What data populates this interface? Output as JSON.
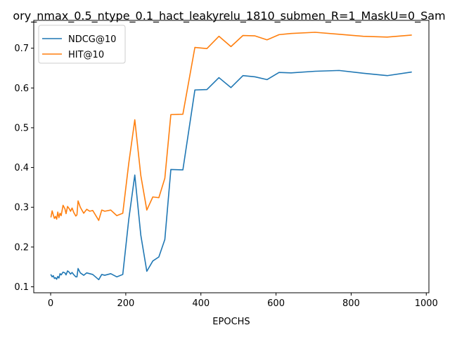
{
  "chart_data": {
    "type": "line",
    "title": "ory_nmax_0.5_ntype_0.1_hact_leakyrelu_1810_submen_R=1_MaskU=0_Sam",
    "xlabel": "EPOCHS",
    "ylabel": "",
    "xlim": [
      -45,
      1007
    ],
    "ylim": [
      0.085,
      0.77
    ],
    "xticks": [
      0,
      200,
      400,
      600,
      800,
      1000
    ],
    "yticks": [
      0.1,
      0.2,
      0.3,
      0.4,
      0.5,
      0.6,
      0.7
    ],
    "grid": false,
    "legend_position": "upper-left",
    "series": [
      {
        "name": "NDCG@10",
        "color": "#1f77b4",
        "points": [
          [
            1,
            0.13
          ],
          [
            4,
            0.125
          ],
          [
            7,
            0.128
          ],
          [
            10,
            0.121
          ],
          [
            13,
            0.123
          ],
          [
            16,
            0.119
          ],
          [
            19,
            0.126
          ],
          [
            22,
            0.122
          ],
          [
            25,
            0.133
          ],
          [
            28,
            0.13
          ],
          [
            33,
            0.137
          ],
          [
            38,
            0.135
          ],
          [
            41,
            0.13
          ],
          [
            45,
            0.14
          ],
          [
            49,
            0.137
          ],
          [
            53,
            0.132
          ],
          [
            57,
            0.136
          ],
          [
            62,
            0.13
          ],
          [
            67,
            0.125
          ],
          [
            70,
            0.125
          ],
          [
            73,
            0.146
          ],
          [
            79,
            0.135
          ],
          [
            88,
            0.129
          ],
          [
            96,
            0.135
          ],
          [
            104,
            0.133
          ],
          [
            112,
            0.131
          ],
          [
            128,
            0.118
          ],
          [
            136,
            0.131
          ],
          [
            144,
            0.129
          ],
          [
            160,
            0.133
          ],
          [
            176,
            0.125
          ],
          [
            192,
            0.131
          ],
          [
            208,
            0.27
          ],
          [
            224,
            0.381
          ],
          [
            240,
            0.23
          ],
          [
            256,
            0.139
          ],
          [
            272,
            0.165
          ],
          [
            288,
            0.175
          ],
          [
            304,
            0.219
          ],
          [
            320,
            0.395
          ],
          [
            352,
            0.394
          ],
          [
            384,
            0.595
          ],
          [
            416,
            0.596
          ],
          [
            448,
            0.626
          ],
          [
            480,
            0.601
          ],
          [
            512,
            0.631
          ],
          [
            544,
            0.628
          ],
          [
            576,
            0.621
          ],
          [
            608,
            0.639
          ],
          [
            640,
            0.638
          ],
          [
            704,
            0.642
          ],
          [
            768,
            0.644
          ],
          [
            832,
            0.637
          ],
          [
            896,
            0.631
          ],
          [
            960,
            0.64
          ]
        ]
      },
      {
        "name": "HIT@10",
        "color": "#ff7f0e",
        "points": [
          [
            1,
            0.276
          ],
          [
            4,
            0.291
          ],
          [
            7,
            0.281
          ],
          [
            10,
            0.272
          ],
          [
            13,
            0.277
          ],
          [
            16,
            0.27
          ],
          [
            19,
            0.288
          ],
          [
            22,
            0.274
          ],
          [
            25,
            0.285
          ],
          [
            28,
            0.279
          ],
          [
            33,
            0.305
          ],
          [
            38,
            0.296
          ],
          [
            41,
            0.284
          ],
          [
            45,
            0.302
          ],
          [
            49,
            0.297
          ],
          [
            53,
            0.29
          ],
          [
            57,
            0.298
          ],
          [
            62,
            0.286
          ],
          [
            67,
            0.278
          ],
          [
            70,
            0.281
          ],
          [
            73,
            0.316
          ],
          [
            79,
            0.3
          ],
          [
            88,
            0.285
          ],
          [
            96,
            0.295
          ],
          [
            104,
            0.29
          ],
          [
            112,
            0.292
          ],
          [
            128,
            0.267
          ],
          [
            136,
            0.293
          ],
          [
            144,
            0.29
          ],
          [
            160,
            0.293
          ],
          [
            176,
            0.279
          ],
          [
            192,
            0.285
          ],
          [
            208,
            0.411
          ],
          [
            224,
            0.52
          ],
          [
            240,
            0.38
          ],
          [
            256,
            0.293
          ],
          [
            272,
            0.326
          ],
          [
            288,
            0.324
          ],
          [
            304,
            0.373
          ],
          [
            320,
            0.533
          ],
          [
            352,
            0.534
          ],
          [
            384,
            0.702
          ],
          [
            416,
            0.699
          ],
          [
            448,
            0.73
          ],
          [
            480,
            0.704
          ],
          [
            512,
            0.732
          ],
          [
            544,
            0.731
          ],
          [
            576,
            0.721
          ],
          [
            608,
            0.734
          ],
          [
            640,
            0.737
          ],
          [
            704,
            0.74
          ],
          [
            768,
            0.735
          ],
          [
            832,
            0.73
          ],
          [
            896,
            0.728
          ],
          [
            960,
            0.733
          ]
        ]
      }
    ]
  }
}
